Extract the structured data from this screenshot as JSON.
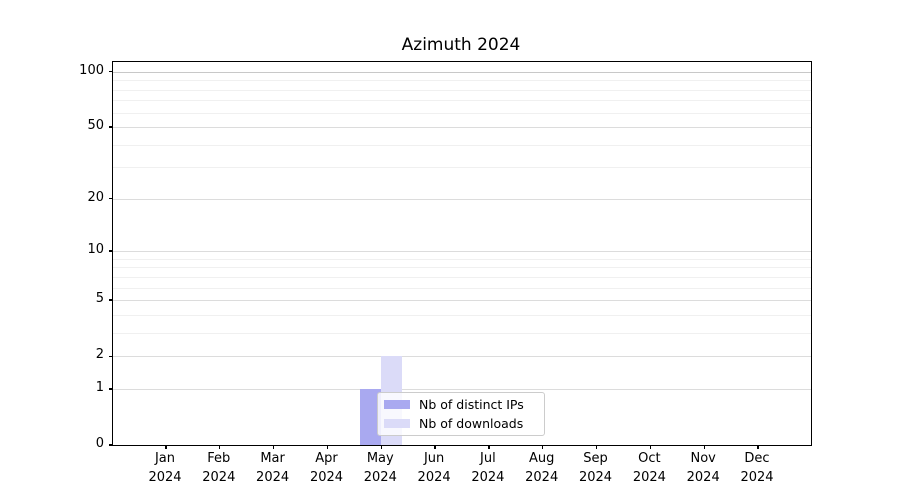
{
  "title": "Azimuth 2024",
  "chart_data": {
    "type": "bar",
    "title": "Azimuth 2024",
    "categories": [
      "Jan 2024",
      "Feb 2024",
      "Mar 2024",
      "Apr 2024",
      "May 2024",
      "Jun 2024",
      "Jul 2024",
      "Aug 2024",
      "Sep 2024",
      "Oct 2024",
      "Nov 2024",
      "Dec 2024"
    ],
    "series": [
      {
        "name": "Nb of distinct IPs",
        "color": "#a9a9f0",
        "values": [
          0,
          0,
          0,
          0,
          1,
          0,
          0,
          0,
          0,
          0,
          0,
          0
        ]
      },
      {
        "name": "Nb of downloads",
        "color": "#dbdbf8",
        "values": [
          0,
          0,
          0,
          0,
          2,
          0,
          0,
          0,
          0,
          0,
          0,
          0
        ]
      }
    ],
    "xlabel": "",
    "ylabel": "",
    "yscale": "log1p",
    "ylim": [
      0,
      113
    ],
    "yticks_labeled": [
      0,
      1,
      2,
      5,
      10,
      20,
      50,
      100
    ],
    "yticks_minor": [
      3,
      4,
      6,
      7,
      8,
      9,
      30,
      40,
      60,
      70,
      80,
      90
    ],
    "grid": true,
    "legend_location": "lower center"
  },
  "colors": {
    "bar_distinct_ips": "#a9a9f0",
    "bar_downloads": "#dbdbf8",
    "grid_minor": "#f0f0f0",
    "grid_labeled": "#dcdcdc",
    "grid_top": "#c8c8c8",
    "axis": "#000000",
    "legend_border": "#cccccc",
    "background": "#ffffff"
  },
  "legend": {
    "entries": [
      "Nb of distinct IPs",
      "Nb of downloads"
    ]
  }
}
